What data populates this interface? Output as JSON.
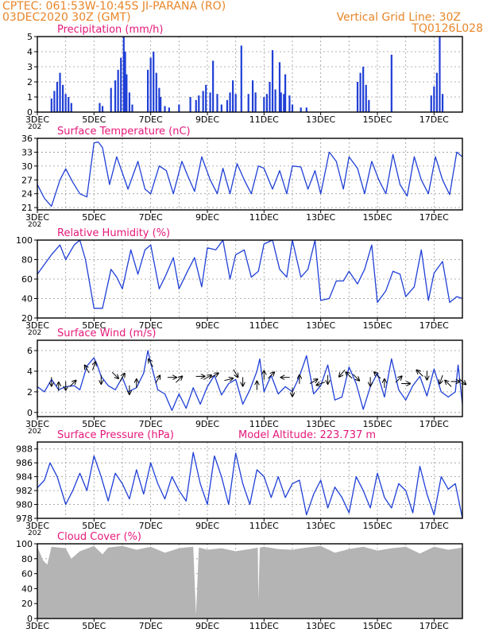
{
  "header": {
    "line1": "CPTEC:   061:53W-10:45S   JI-PARANA (RO)",
    "line2": "03DEC2020 30Z (GMT)",
    "right1": "Vertical Grid Line: 30Z",
    "right2": "TQ0126L028",
    "cut_label": "202"
  },
  "x_axis": {
    "tick_labels": [
      "3DEC",
      "5DEC",
      "7DEC",
      "9DEC",
      "11DEC",
      "13DEC",
      "15DEC",
      "17DEC"
    ],
    "tick_days": [
      0,
      2,
      4,
      6,
      8,
      10,
      12,
      14
    ],
    "range_days": [
      0,
      15
    ],
    "minor_grid_every_days": 1
  },
  "colors": {
    "line": "#1f3fd6",
    "bar": "#1f3fd6",
    "title": "#e5187a",
    "header": "#e8862a",
    "cloud": "#b4b4b4",
    "arrow": "#000000"
  },
  "chart_data": [
    {
      "type": "bar",
      "title": "Precipitation (mm/h)",
      "ylim": [
        0,
        5
      ],
      "yticks": [
        0,
        1,
        2,
        3,
        4,
        5
      ],
      "grid": true,
      "x": [
        0.5,
        0.6,
        0.7,
        0.8,
        0.9,
        1.0,
        1.1,
        1.2,
        2.2,
        2.3,
        2.6,
        2.75,
        2.85,
        2.95,
        3.05,
        3.1,
        3.15,
        3.25,
        3.35,
        3.9,
        4.0,
        4.1,
        4.2,
        4.3,
        4.35,
        4.5,
        4.65,
        5.0,
        5.4,
        5.6,
        5.7,
        5.85,
        5.95,
        6.1,
        6.2,
        6.35,
        6.5,
        6.7,
        6.8,
        6.9,
        7.0,
        7.2,
        7.45,
        7.6,
        7.7,
        8.0,
        8.1,
        8.2,
        8.3,
        8.4,
        8.55,
        8.6,
        8.7,
        8.75,
        8.9,
        9.0,
        9.3,
        9.5,
        11.3,
        11.4,
        11.5,
        11.6,
        11.7,
        12.5,
        13.9,
        14.0,
        14.1,
        14.2,
        14.3
      ],
      "values": [
        0.9,
        1.4,
        2.0,
        2.6,
        1.8,
        1.2,
        1.0,
        0.6,
        0.6,
        0.4,
        1.6,
        2.1,
        2.8,
        3.6,
        5.0,
        4.0,
        2.5,
        1.3,
        0.5,
        2.8,
        3.6,
        4.0,
        2.6,
        1.6,
        1.0,
        0.4,
        0.3,
        0.5,
        1.0,
        0.8,
        1.1,
        1.4,
        1.8,
        1.3,
        3.4,
        1.2,
        0.5,
        0.8,
        1.3,
        2.1,
        1.2,
        4.4,
        1.2,
        2.1,
        1.3,
        1.0,
        1.2,
        2.0,
        4.1,
        1.5,
        3.3,
        1.3,
        1.2,
        2.5,
        1.1,
        0.5,
        0.3,
        0.3,
        2.0,
        2.6,
        3.0,
        1.8,
        0.8,
        3.8,
        1.1,
        1.7,
        2.6,
        5.0,
        1.2
      ]
    },
    {
      "type": "line",
      "title": "Surface Temperature (nC)",
      "ylim": [
        20.5,
        36
      ],
      "yticks": [
        21,
        24,
        27,
        30,
        33,
        36
      ],
      "grid": true,
      "x": [
        0,
        0.25,
        0.5,
        0.8,
        1.0,
        1.25,
        1.5,
        1.75,
        2.0,
        2.15,
        2.3,
        2.55,
        2.8,
        3.0,
        3.2,
        3.55,
        3.8,
        4.0,
        4.3,
        4.55,
        4.8,
        5.1,
        5.3,
        5.55,
        5.8,
        6.1,
        6.35,
        6.55,
        6.8,
        7.05,
        7.3,
        7.55,
        7.8,
        8.0,
        8.3,
        8.55,
        8.8,
        9.0,
        9.3,
        9.55,
        9.8,
        10.0,
        10.3,
        10.55,
        10.8,
        11.0,
        11.3,
        11.55,
        11.8,
        12.05,
        12.3,
        12.55,
        12.8,
        13.05,
        13.3,
        13.55,
        13.8,
        14.05,
        14.3,
        14.55,
        14.8,
        15.0
      ],
      "values": [
        26,
        23,
        21.3,
        27,
        29.4,
        26.5,
        24,
        23.3,
        35,
        35.2,
        34,
        26,
        32,
        28.5,
        25,
        31,
        25,
        24,
        30,
        29,
        24,
        31,
        28,
        24.5,
        32,
        27,
        24,
        29.5,
        24,
        30.5,
        27,
        24,
        30,
        29.5,
        25,
        29,
        24,
        30,
        29.8,
        25,
        29,
        24,
        33,
        31,
        25,
        32,
        29.5,
        24,
        31,
        27,
        24,
        32.5,
        26,
        23.5,
        32,
        27,
        24,
        32,
        27,
        23.8,
        33,
        32
      ]
    },
    {
      "type": "line",
      "title": "Relative Humidity (%)",
      "ylim": [
        20,
        100
      ],
      "yticks": [
        20,
        40,
        60,
        80,
        100
      ],
      "grid": true,
      "x": [
        0,
        0.5,
        0.8,
        1.0,
        1.3,
        1.5,
        1.7,
        1.85,
        2.0,
        2.3,
        2.6,
        2.8,
        3.0,
        3.3,
        3.55,
        3.8,
        4.0,
        4.3,
        4.55,
        4.8,
        5.0,
        5.3,
        5.55,
        5.8,
        6.0,
        6.3,
        6.55,
        6.8,
        7.0,
        7.3,
        7.55,
        7.8,
        8.0,
        8.3,
        8.55,
        8.8,
        9.0,
        9.3,
        9.55,
        9.8,
        10.0,
        10.3,
        10.55,
        10.8,
        11.0,
        11.3,
        11.55,
        11.8,
        12.0,
        12.3,
        12.55,
        12.8,
        13.0,
        13.3,
        13.55,
        13.8,
        14.0,
        14.3,
        14.55,
        14.8,
        15.0
      ],
      "values": [
        65,
        85,
        95,
        80,
        95,
        100,
        80,
        55,
        30,
        30,
        70,
        62,
        50,
        90,
        65,
        90,
        95,
        50,
        65,
        82,
        50,
        68,
        82,
        52,
        92,
        90,
        100,
        60,
        85,
        90,
        62,
        68,
        96,
        100,
        70,
        62,
        100,
        62,
        70,
        100,
        38,
        40,
        58,
        58,
        68,
        55,
        70,
        95,
        36,
        48,
        68,
        65,
        42,
        52,
        90,
        38,
        66,
        78,
        36,
        42,
        40
      ]
    },
    {
      "type": "line",
      "title": "Surface Wind (m/s)",
      "ylim": [
        -0.4,
        7
      ],
      "yticks": [
        0,
        2,
        4,
        6
      ],
      "grid": true,
      "x": [
        0,
        0.25,
        0.5,
        0.75,
        1.0,
        1.3,
        1.5,
        1.75,
        2.0,
        2.1,
        2.25,
        2.5,
        2.75,
        3.0,
        3.2,
        3.5,
        3.75,
        3.9,
        4.0,
        4.25,
        4.5,
        4.75,
        5.0,
        5.25,
        5.5,
        5.75,
        6.0,
        6.25,
        6.5,
        6.75,
        7.0,
        7.25,
        7.5,
        7.75,
        7.85,
        8.0,
        8.25,
        8.5,
        8.75,
        9.0,
        9.25,
        9.5,
        9.75,
        10.0,
        10.25,
        10.5,
        10.75,
        11.0,
        11.25,
        11.5,
        11.75,
        12.0,
        12.25,
        12.5,
        12.75,
        13.0,
        13.25,
        13.5,
        13.75,
        14.0,
        14.25,
        14.5,
        14.75,
        14.85,
        15.0
      ],
      "values": [
        2.5,
        2.0,
        3.2,
        2.2,
        2.5,
        2.6,
        2.2,
        4.5,
        5.3,
        4.7,
        3.5,
        2.6,
        2.2,
        3.4,
        2.0,
        2.4,
        3.8,
        6.0,
        4.8,
        2.2,
        1.8,
        0.2,
        1.8,
        0.4,
        2.4,
        0.8,
        2.5,
        3.6,
        1.7,
        2.8,
        3.2,
        0.8,
        2.2,
        4.0,
        5.2,
        2.0,
        3.6,
        1.8,
        2.5,
        2.0,
        3.5,
        5.5,
        1.8,
        2.6,
        4.6,
        1.2,
        1.5,
        4.4,
        2.8,
        0.3,
        2.5,
        3.8,
        1.5,
        5.2,
        2.2,
        1.2,
        2.6,
        3.5,
        1.6,
        4.2,
        2.0,
        1.5,
        2.0,
        4.6,
        0.8
      ],
      "arrow_x": [
        0.5,
        0.75,
        1.0,
        1.25,
        1.75,
        2.0,
        2.25,
        2.75,
        3.0,
        3.25,
        3.5,
        4.0,
        4.25,
        4.75,
        5.0,
        5.75,
        6.0,
        6.25,
        6.75,
        7.0,
        7.25,
        7.75,
        8.0,
        8.25,
        8.75,
        9.0,
        9.25,
        9.75,
        10.0,
        10.25,
        10.75,
        11.0,
        11.25,
        11.75,
        12.0,
        12.25,
        12.75,
        13.0,
        13.5,
        13.75,
        14.25,
        14.5,
        14.75,
        15.0
      ],
      "arrow_y": [
        3.0,
        2.5,
        2.6,
        2.8,
        4.2,
        4.5,
        3.2,
        3.6,
        3.4,
        2.2,
        2.8,
        4.8,
        3.2,
        3.4,
        3.2,
        3.5,
        3.4,
        3.6,
        3.2,
        3.8,
        3.0,
        2.6,
        3.6,
        3.6,
        3.4,
        2.0,
        3.2,
        3.0,
        2.8,
        3.2,
        3.8,
        3.6,
        3.4,
        3.0,
        3.6,
        2.8,
        3.2,
        2.8,
        3.8,
        3.6,
        3.2,
        2.8,
        3.0,
        3.0
      ],
      "arrow_dir_deg": [
        270,
        90,
        270,
        45,
        120,
        70,
        270,
        315,
        60,
        270,
        90,
        120,
        60,
        0,
        45,
        0,
        30,
        30,
        15,
        300,
        270,
        90,
        90,
        45,
        180,
        270,
        90,
        30,
        200,
        270,
        230,
        135,
        315,
        270,
        135,
        90,
        45,
        0,
        135,
        270,
        250,
        135,
        0,
        320
      ]
    },
    {
      "type": "line",
      "title": "Surface Pressure (hPa)",
      "subtitle": "Model Altitude: 223.737 m",
      "ylim": [
        978,
        989
      ],
      "yticks": [
        978,
        980,
        982,
        984,
        986,
        988
      ],
      "grid": true,
      "x": [
        0,
        0.25,
        0.45,
        0.7,
        1.0,
        1.25,
        1.5,
        1.75,
        2.0,
        2.25,
        2.5,
        2.75,
        3.0,
        3.25,
        3.5,
        3.75,
        4.0,
        4.25,
        4.5,
        4.75,
        5.0,
        5.25,
        5.5,
        5.75,
        6.0,
        6.25,
        6.5,
        6.75,
        7.0,
        7.25,
        7.5,
        7.75,
        8.0,
        8.25,
        8.5,
        8.75,
        9.0,
        9.25,
        9.5,
        9.75,
        10.0,
        10.25,
        10.5,
        10.75,
        11.0,
        11.25,
        11.5,
        11.75,
        12.0,
        12.25,
        12.5,
        12.75,
        13.0,
        13.25,
        13.5,
        13.75,
        14.0,
        14.25,
        14.5,
        14.75,
        15.0
      ],
      "values": [
        982.4,
        983.5,
        986,
        984,
        980,
        982,
        984.5,
        982,
        987,
        984,
        980.5,
        984.5,
        983,
        980.8,
        985,
        981.5,
        986,
        983,
        980.8,
        984,
        982,
        980.5,
        987.5,
        983,
        980,
        987,
        984,
        980,
        987.4,
        983,
        980,
        985,
        984,
        981,
        984,
        981,
        983,
        983.5,
        978.5,
        981.5,
        983.5,
        979.5,
        982.5,
        981,
        978.8,
        984,
        982,
        979.5,
        984.5,
        981,
        979.5,
        983,
        982,
        978.8,
        985.5,
        981.5,
        978.5,
        984,
        982.2,
        983,
        978
      ]
    },
    {
      "type": "area",
      "title": "Cloud Cover (%)",
      "ylim": [
        0,
        100
      ],
      "yticks": [
        0,
        20,
        40,
        60,
        80,
        100
      ],
      "grid": true,
      "x": [
        0,
        0.2,
        0.35,
        0.5,
        1.0,
        1.2,
        1.5,
        2.0,
        2.3,
        2.5,
        3.0,
        3.5,
        4.0,
        4.5,
        5.0,
        5.2,
        5.5,
        5.6,
        5.7,
        6.0,
        6.5,
        7.0,
        7.5,
        7.78,
        7.8,
        7.85,
        8.0,
        8.5,
        9.0,
        9.5,
        10.0,
        10.5,
        11.0,
        11.5,
        12.0,
        12.5,
        13.0,
        13.5,
        14.0,
        14.5,
        15.0
      ],
      "values": [
        96,
        78,
        72,
        96,
        94,
        80,
        90,
        97,
        86,
        95,
        97,
        92,
        96,
        88,
        94,
        95,
        96,
        5,
        95,
        92,
        94,
        90,
        93,
        95,
        25,
        95,
        96,
        93,
        92,
        95,
        97,
        88,
        93,
        96,
        91,
        94,
        96,
        87,
        96,
        92,
        95
      ]
    }
  ]
}
